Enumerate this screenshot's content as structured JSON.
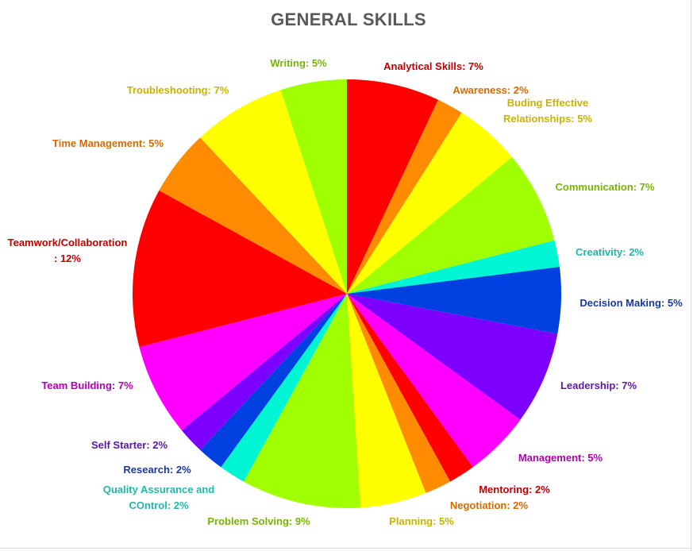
{
  "chart_data": {
    "type": "pie",
    "title": "GENERAL SKILLS",
    "slices": [
      {
        "label": "Analytical Skills: 7%",
        "value": 7,
        "color": "#ff0000",
        "label_color": "#c00000"
      },
      {
        "label": "Awareness: 2%",
        "value": 2,
        "color": "#ff8c00",
        "label_color": "#d46a00"
      },
      {
        "label": "Buding Effective Relationships: 5%",
        "value": 5,
        "color": "#ffff00",
        "label_color": "#c8b400"
      },
      {
        "label": "Communication: 7%",
        "value": 7,
        "color": "#a0ff00",
        "label_color": "#78b400"
      },
      {
        "label": "Creativity: 2%",
        "value": 2,
        "color": "#00f5d4",
        "label_color": "#1fb8a8"
      },
      {
        "label": "Decision Making: 5%",
        "value": 5,
        "color": "#0040e0",
        "label_color": "#1a3a9c"
      },
      {
        "label": "Leadership: 7%",
        "value": 7,
        "color": "#7d00ff",
        "label_color": "#5a1aa0"
      },
      {
        "label": "Management: 5%",
        "value": 5,
        "color": "#ff00ff",
        "label_color": "#b000b0"
      },
      {
        "label": "Mentoring: 2%",
        "value": 2,
        "color": "#ff0000",
        "label_color": "#c00000"
      },
      {
        "label": "Negotiation: 2%",
        "value": 2,
        "color": "#ff8c00",
        "label_color": "#d46a00"
      },
      {
        "label": "Planning: 5%",
        "value": 5,
        "color": "#ffff00",
        "label_color": "#c8b400"
      },
      {
        "label": "Problem Solving: 9%",
        "value": 9,
        "color": "#a0ff00",
        "label_color": "#78b400"
      },
      {
        "label": "Quality Assurance and COntrol: 2%",
        "value": 2,
        "color": "#00f5d4",
        "label_color": "#1fb8a8"
      },
      {
        "label": "Research: 2%",
        "value": 2,
        "color": "#0040e0",
        "label_color": "#1a3a9c"
      },
      {
        "label": "Self Starter: 2%",
        "value": 2,
        "color": "#7d00ff",
        "label_color": "#5a1aa0"
      },
      {
        "label": "Team Building: 7%",
        "value": 7,
        "color": "#ff00ff",
        "label_color": "#b000b0"
      },
      {
        "label": "Teamwork/Collaboration : 12%",
        "value": 12,
        "color": "#ff0000",
        "label_color": "#c00000"
      },
      {
        "label": "Time Management: 5%",
        "value": 5,
        "color": "#ff8c00",
        "label_color": "#d46a00"
      },
      {
        "label": "Troubleshooting: 7%",
        "value": 7,
        "color": "#ffff00",
        "label_color": "#c8b400"
      },
      {
        "label": "Writing: 5%",
        "value": 5,
        "color": "#a0ff00",
        "label_color": "#78b400"
      }
    ],
    "start_angle_deg": 0,
    "direction": "clockwise",
    "legend": "none",
    "data_labels": "outside"
  }
}
